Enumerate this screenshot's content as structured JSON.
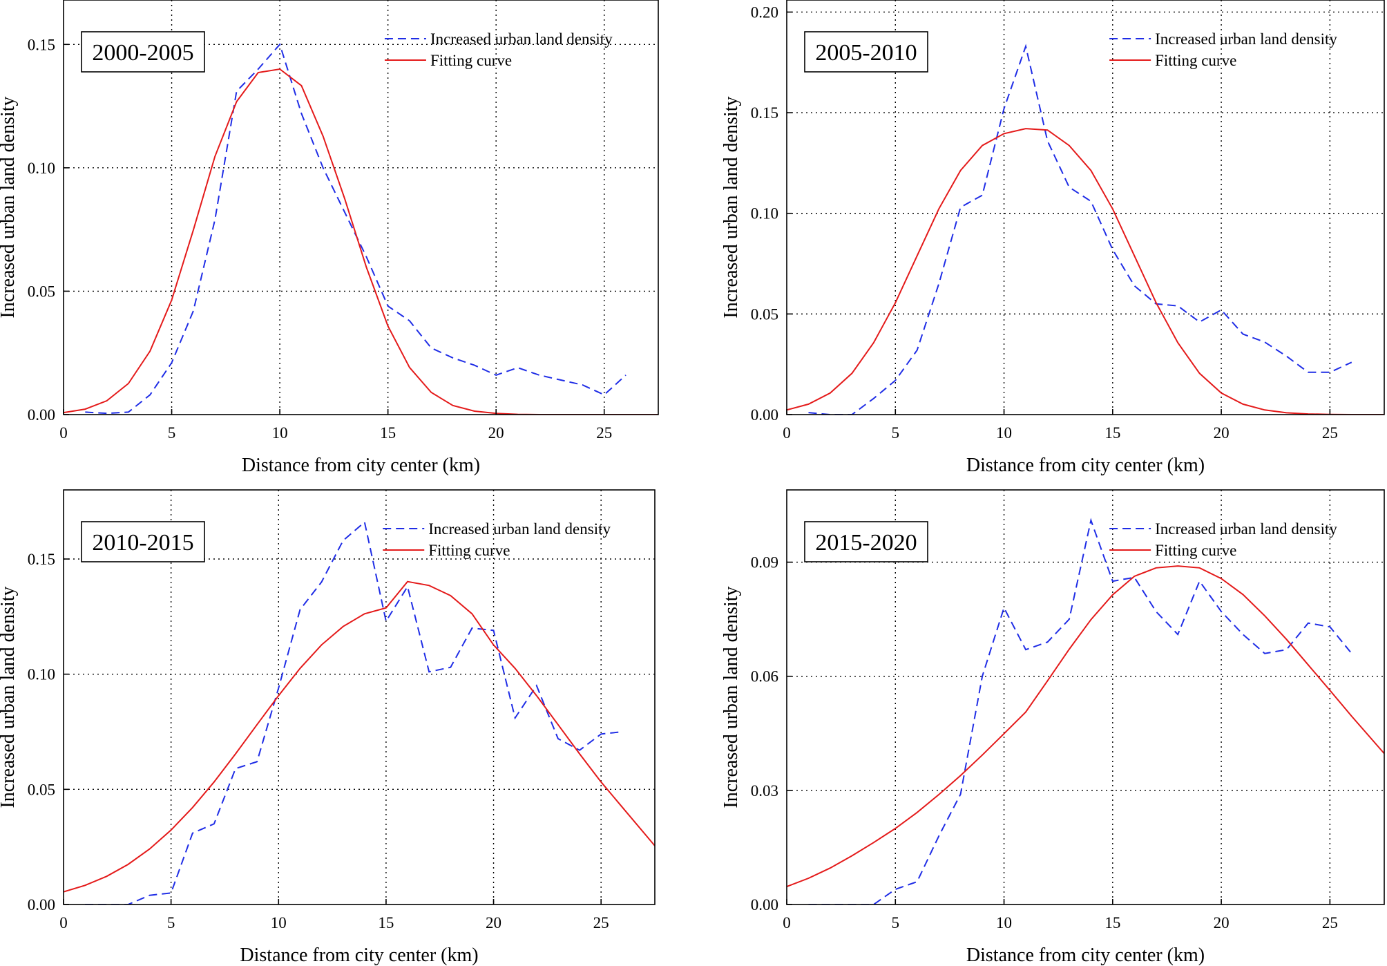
{
  "chart_data": [
    {
      "type": "line",
      "label": "2000-2005",
      "xlabel": "Distance from city center (km)",
      "ylabel": "Increased urban land density",
      "xlim": [
        0,
        27.5
      ],
      "ylim": [
        0,
        0.168
      ],
      "xticks": [
        0,
        5,
        10,
        15,
        20,
        25
      ],
      "yticks": [
        0.0,
        0.05,
        0.1,
        0.15
      ],
      "ytick_labels": [
        "0.00",
        "0.05",
        "0.10",
        "0.15"
      ],
      "grid": true,
      "legend_position": "top-right",
      "series": [
        {
          "name": "Increased urban land density",
          "style": "dashed",
          "color": "#1f2de6",
          "x": [
            1,
            2,
            3,
            4,
            5,
            6,
            7,
            8,
            9,
            10,
            11,
            12,
            13,
            14,
            15,
            16,
            17,
            18,
            19,
            20,
            21,
            22,
            23,
            24,
            25,
            26
          ],
          "y": [
            0.001,
            0.0005,
            0.001,
            0.008,
            0.021,
            0.042,
            0.079,
            0.131,
            0.14,
            0.15,
            0.122,
            0.1,
            0.082,
            0.064,
            0.044,
            0.038,
            0.027,
            0.023,
            0.02,
            0.016,
            0.019,
            0.016,
            0.014,
            0.012,
            0.008,
            0.016
          ]
        },
        {
          "name": "Fitting curve",
          "style": "solid",
          "color": "#e41a1a",
          "x": [
            0,
            1,
            2,
            3,
            4,
            5,
            6,
            7,
            8,
            9,
            10,
            11,
            12,
            13,
            14,
            15,
            16,
            17,
            18,
            19,
            20,
            21,
            22,
            23,
            24,
            25,
            26,
            27.5
          ],
          "y": [
            0.0008,
            0.0022,
            0.0056,
            0.0126,
            0.0257,
            0.0464,
            0.0748,
            0.1046,
            0.1268,
            0.1386,
            0.14,
            0.1333,
            0.1128,
            0.0875,
            0.0598,
            0.0359,
            0.0191,
            0.009,
            0.0037,
            0.0014,
            0.0005,
            0.0001,
            0.0,
            0.0,
            0.0,
            0.0,
            0.0,
            0.0
          ]
        }
      ]
    },
    {
      "type": "line",
      "label": "2005-2010",
      "xlabel": "Distance from city center (km)",
      "ylabel": "Increased urban land density",
      "xlim": [
        0,
        27.5
      ],
      "ylim": [
        0,
        0.206
      ],
      "xticks": [
        0,
        5,
        10,
        15,
        20,
        25
      ],
      "yticks": [
        0.0,
        0.05,
        0.1,
        0.15,
        0.2
      ],
      "ytick_labels": [
        "0.00",
        "0.05",
        "0.10",
        "0.15",
        "0.20"
      ],
      "grid": true,
      "legend_position": "top-right",
      "series": [
        {
          "name": "Increased urban land density",
          "style": "dashed",
          "color": "#1f2de6",
          "x": [
            1,
            2,
            3,
            4,
            5,
            6,
            7,
            8,
            9,
            10,
            11,
            12,
            13,
            14,
            15,
            16,
            17,
            18,
            19,
            20,
            21,
            22,
            23,
            24,
            25,
            26
          ],
          "y": [
            0.001,
            0.0,
            0.0,
            0.008,
            0.017,
            0.032,
            0.065,
            0.103,
            0.109,
            0.152,
            0.183,
            0.136,
            0.113,
            0.106,
            0.082,
            0.064,
            0.055,
            0.054,
            0.046,
            0.052,
            0.04,
            0.036,
            0.029,
            0.021,
            0.021,
            0.026
          ]
        },
        {
          "name": "Fitting curve",
          "style": "solid",
          "color": "#e41a1a",
          "x": [
            0,
            1,
            2,
            3,
            4,
            5,
            6,
            7,
            8,
            9,
            10,
            11,
            12,
            13,
            14,
            15,
            16,
            17,
            18,
            19,
            20,
            21,
            22,
            23,
            24,
            25,
            26,
            27.5
          ],
          "y": [
            0.0023,
            0.0052,
            0.0107,
            0.0205,
            0.0357,
            0.0556,
            0.0789,
            0.1022,
            0.1213,
            0.1337,
            0.1396,
            0.1421,
            0.1414,
            0.1337,
            0.1213,
            0.1022,
            0.0789,
            0.0556,
            0.0357,
            0.0205,
            0.0107,
            0.0052,
            0.0023,
            0.0009,
            0.0003,
            0.0001,
            0.0,
            0.0
          ]
        }
      ]
    },
    {
      "type": "line",
      "label": "2010-2015",
      "xlabel": "Distance from city center (km)",
      "ylabel": "Increased urban land density",
      "xlim": [
        0,
        27.5
      ],
      "ylim": [
        0,
        0.18
      ],
      "xticks": [
        0,
        5,
        10,
        15,
        20,
        25
      ],
      "yticks": [
        0.0,
        0.05,
        0.1,
        0.15
      ],
      "ytick_labels": [
        "0.00",
        "0.05",
        "0.10",
        "0.15"
      ],
      "grid": true,
      "legend_position": "top-right",
      "series": [
        {
          "name": "Increased urban land density",
          "style": "dashed",
          "color": "#1f2de6",
          "x": [
            1,
            2,
            3,
            4,
            5,
            6,
            7,
            8,
            9,
            10,
            11,
            12,
            13,
            14,
            15,
            16,
            17,
            18,
            19,
            20,
            21,
            22,
            23,
            24,
            25,
            26
          ],
          "y": [
            0.0,
            0.0,
            0.0,
            0.004,
            0.005,
            0.031,
            0.035,
            0.059,
            0.062,
            0.094,
            0.128,
            0.14,
            0.158,
            0.166,
            0.123,
            0.138,
            0.101,
            0.103,
            0.12,
            0.119,
            0.081,
            0.095,
            0.072,
            0.067,
            0.074,
            0.075
          ]
        },
        {
          "name": "Fitting curve",
          "style": "solid",
          "color": "#e41a1a",
          "x": [
            0,
            1,
            2,
            3,
            4,
            5,
            6,
            7,
            8,
            9,
            10,
            11,
            12,
            13,
            14,
            15,
            16,
            17,
            18,
            19,
            20,
            21,
            22,
            23,
            24,
            25,
            26,
            27.5
          ],
          "y": [
            0.0055,
            0.0083,
            0.0122,
            0.0174,
            0.0241,
            0.0323,
            0.0421,
            0.0532,
            0.0654,
            0.0781,
            0.0907,
            0.1025,
            0.1127,
            0.1207,
            0.1262,
            0.1288,
            0.1402,
            0.1385,
            0.1341,
            0.1262,
            0.1127,
            0.1025,
            0.0907,
            0.0781,
            0.0654,
            0.0532,
            0.0421,
            0.0255
          ]
        }
      ]
    },
    {
      "type": "line",
      "label": "2015-2020",
      "xlabel": "Distance from city center (km)",
      "ylabel": "Increased urban land density",
      "xlim": [
        0,
        27.5
      ],
      "ylim": [
        0,
        0.109
      ],
      "xticks": [
        0,
        5,
        10,
        15,
        20,
        25
      ],
      "yticks": [
        0.0,
        0.03,
        0.06,
        0.09
      ],
      "ytick_labels": [
        "0.00",
        "0.03",
        "0.06",
        "0.09"
      ],
      "grid": true,
      "legend_position": "top-right",
      "series": [
        {
          "name": "Increased urban land density",
          "style": "dashed",
          "color": "#1f2de6",
          "x": [
            1,
            2,
            3,
            4,
            5,
            6,
            7,
            8,
            9,
            10,
            11,
            12,
            13,
            14,
            15,
            16,
            17,
            18,
            19,
            20,
            21,
            22,
            23,
            24,
            25,
            26
          ],
          "y": [
            0.0,
            0.0,
            0.0,
            0.0,
            0.004,
            0.006,
            0.018,
            0.029,
            0.06,
            0.078,
            0.067,
            0.069,
            0.075,
            0.101,
            0.085,
            0.086,
            0.077,
            0.071,
            0.085,
            0.077,
            0.071,
            0.066,
            0.067,
            0.074,
            0.073,
            0.066
          ]
        },
        {
          "name": "Fitting curve",
          "style": "solid",
          "color": "#e41a1a",
          "x": [
            0,
            1,
            2,
            3,
            4,
            5,
            6,
            7,
            8,
            9,
            10,
            11,
            12,
            13,
            14,
            15,
            16,
            17,
            18,
            19,
            20,
            21,
            22,
            23,
            24,
            25,
            26,
            27.5
          ],
          "y": [
            0.0047,
            0.0069,
            0.0096,
            0.0128,
            0.0163,
            0.02,
            0.0242,
            0.0289,
            0.0339,
            0.0393,
            0.0449,
            0.0506,
            0.0588,
            0.0671,
            0.0749,
            0.0814,
            0.0863,
            0.0885,
            0.089,
            0.0885,
            0.0857,
            0.0815,
            0.0759,
            0.0697,
            0.063,
            0.0563,
            0.0495,
            0.0397
          ]
        }
      ]
    }
  ]
}
